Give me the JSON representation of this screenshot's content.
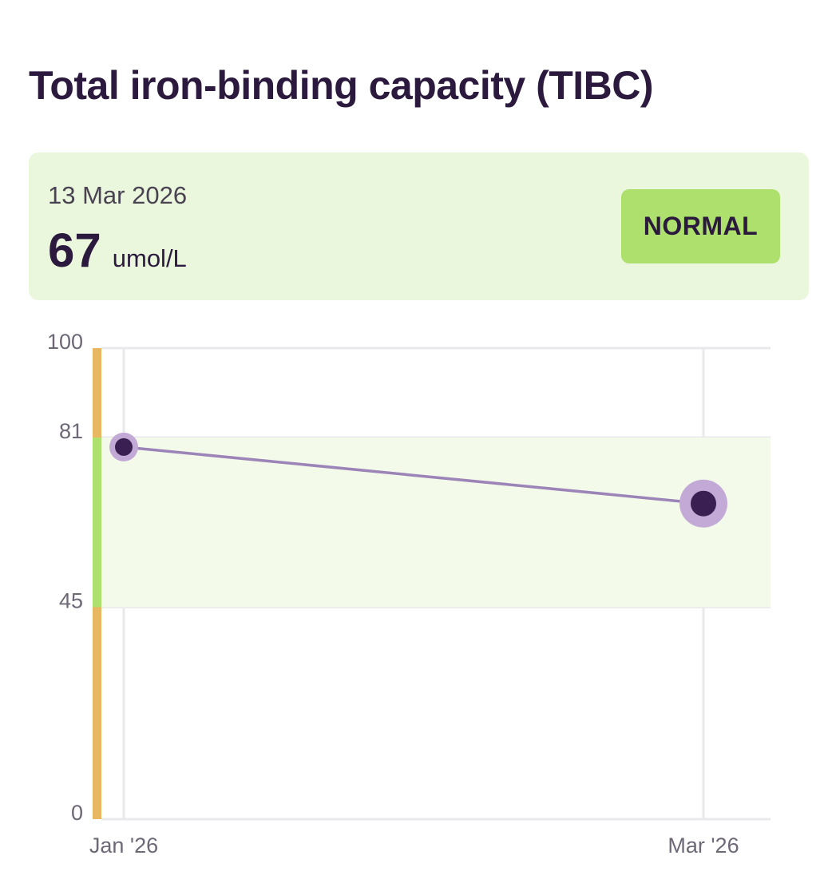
{
  "title": "Total iron-binding capacity (TIBC)",
  "latest": {
    "date": "13 Mar 2026",
    "value": "67",
    "unit": "umol/L",
    "status": "NORMAL"
  },
  "colors": {
    "normal_band": "#f3faea",
    "normal_bar": "#aee06d",
    "out_of_range_bar": "#e8b762",
    "line": "#9c84b8",
    "point_fill": "#3a1f52",
    "point_halo": "#c2a9d6",
    "grid": "#e9e9ec"
  },
  "chart_data": {
    "type": "line",
    "title": "",
    "xlabel": "",
    "ylabel": "",
    "ylim": [
      0,
      100
    ],
    "y_ticks": [
      0,
      45,
      81,
      100
    ],
    "x_tick_labels": [
      "Jan '26",
      "Mar '26"
    ],
    "normal_range": [
      45,
      81
    ],
    "grid": true,
    "series": [
      {
        "x": [
          "Jan '26",
          "Mar '26"
        ],
        "values": [
          79,
          67
        ]
      }
    ]
  }
}
